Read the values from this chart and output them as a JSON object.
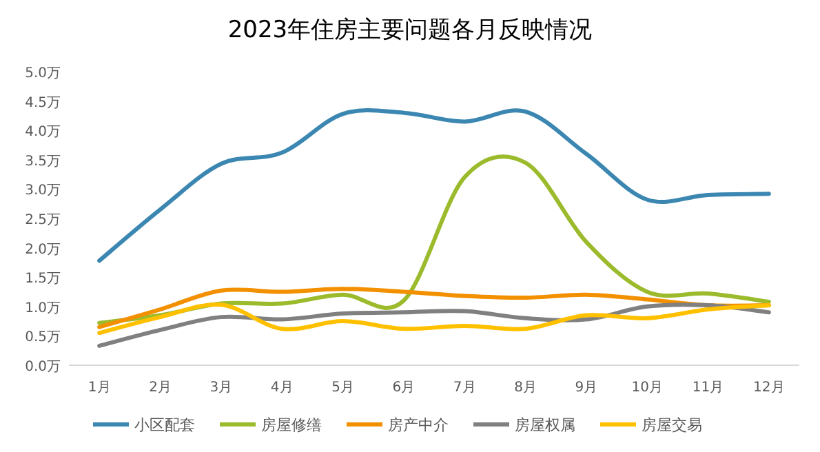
{
  "chart_data": {
    "type": "line",
    "title": "2023年住房主要问题各月反映情况",
    "categories": [
      "1月",
      "2月",
      "3月",
      "4月",
      "5月",
      "6月",
      "7月",
      "8月",
      "9月",
      "10月",
      "11月",
      "12月"
    ],
    "series": [
      {
        "name": "小区配套",
        "color": "#3b87b2",
        "values": [
          1.78,
          2.65,
          3.43,
          3.62,
          4.28,
          4.3,
          4.15,
          4.32,
          3.6,
          2.82,
          2.9,
          2.92
        ]
      },
      {
        "name": "房屋修缮",
        "color": "#9bbb2d",
        "values": [
          0.72,
          0.85,
          1.05,
          1.05,
          1.2,
          1.1,
          3.2,
          3.45,
          2.1,
          1.25,
          1.22,
          1.08
        ]
      },
      {
        "name": "房产中介",
        "color": "#f39000",
        "values": [
          0.65,
          0.95,
          1.27,
          1.25,
          1.3,
          1.25,
          1.18,
          1.15,
          1.2,
          1.12,
          1.02,
          1.02
        ]
      },
      {
        "name": "房屋权属",
        "color": "#808080",
        "values": [
          0.33,
          0.6,
          0.82,
          0.78,
          0.88,
          0.9,
          0.92,
          0.8,
          0.78,
          1.0,
          1.02,
          0.9
        ]
      },
      {
        "name": "房屋交易",
        "color": "#ffc000",
        "values": [
          0.55,
          0.82,
          1.03,
          0.62,
          0.75,
          0.62,
          0.67,
          0.62,
          0.85,
          0.8,
          0.95,
          1.02
        ]
      }
    ],
    "ylim": [
      0,
      5
    ],
    "yticks": [
      {
        "value": 0,
        "label": "0.0万"
      },
      {
        "value": 0.5,
        "label": "0.5万"
      },
      {
        "value": 1,
        "label": "1.0万"
      },
      {
        "value": 1.5,
        "label": "1.5万"
      },
      {
        "value": 2,
        "label": "2.0万"
      },
      {
        "value": 2.5,
        "label": "2.5万"
      },
      {
        "value": 3,
        "label": "3.0万"
      },
      {
        "value": 3.5,
        "label": "3.5万"
      },
      {
        "value": 4,
        "label": "4.0万"
      },
      {
        "value": 4.5,
        "label": "4.5万"
      },
      {
        "value": 5,
        "label": "5.0万"
      }
    ],
    "grid": false,
    "legend": "bottom",
    "marker": "none",
    "line_style": "solid"
  }
}
